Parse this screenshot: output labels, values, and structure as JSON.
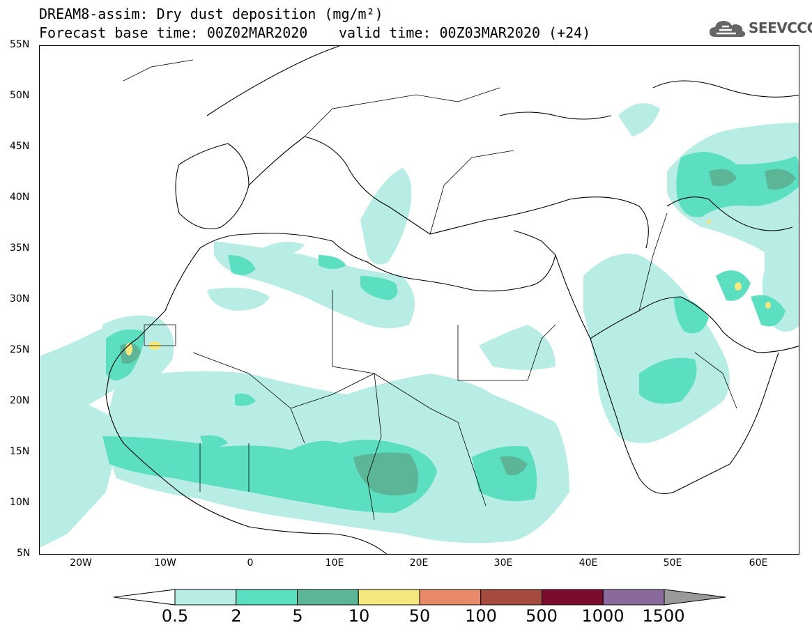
{
  "header": {
    "line1": "DREAM8-assim: Dry dust deposition (mg/m²)",
    "line2": "Forecast base time: 00Z02MAR2020",
    "line3": "valid time: 00Z03MAR2020 (+24)"
  },
  "logo": {
    "text": "SEEVCCC",
    "icon": "cloud-icon"
  },
  "axes": {
    "lat_labels": [
      "55N",
      "50N",
      "45N",
      "40N",
      "35N",
      "30N",
      "25N",
      "20N",
      "15N",
      "10N",
      "5N"
    ],
    "lon_labels": [
      "20W",
      "10W",
      "0",
      "10E",
      "20E",
      "30E",
      "40E",
      "50E",
      "60E"
    ]
  },
  "colorbar": {
    "labels": [
      "0.5",
      "2",
      "5",
      "10",
      "50",
      "100",
      "500",
      "1000",
      "1500"
    ],
    "colors": [
      "#b8ede6",
      "#5cdfc0",
      "#5bb596",
      "#f4e77e",
      "#e8896a",
      "#a84b3f",
      "#7b0c2e",
      "#8a6a9c",
      "#9a9a9a"
    ]
  }
}
